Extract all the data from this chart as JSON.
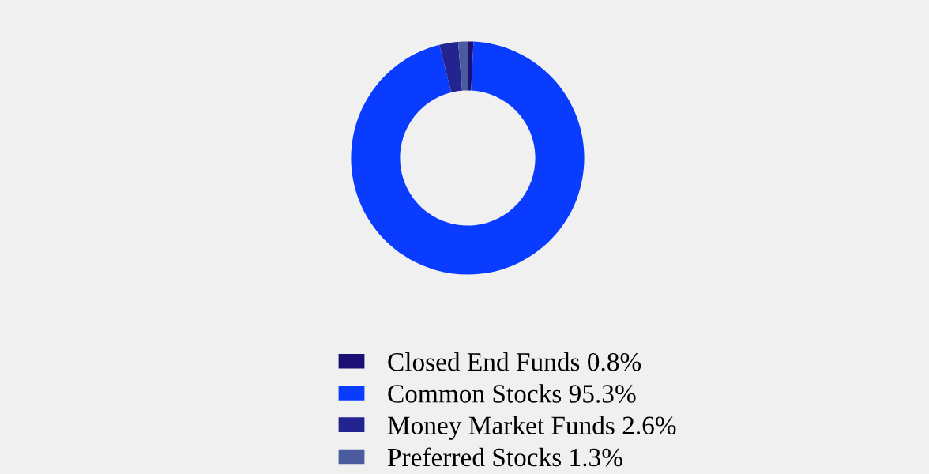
{
  "chart_data": {
    "type": "donut",
    "categories": [
      "Closed End Funds",
      "Common Stocks",
      "Money Market Funds",
      "Preferred Stocks"
    ],
    "values": [
      0.8,
      95.3,
      2.6,
      1.3
    ],
    "value_labels": [
      "0.8%",
      "95.3%",
      "2.6%",
      "1.3%"
    ],
    "colors": [
      "#1c0f73",
      "#0a3cff",
      "#23248f",
      "#4a5c9e"
    ],
    "legend": "bottom"
  }
}
